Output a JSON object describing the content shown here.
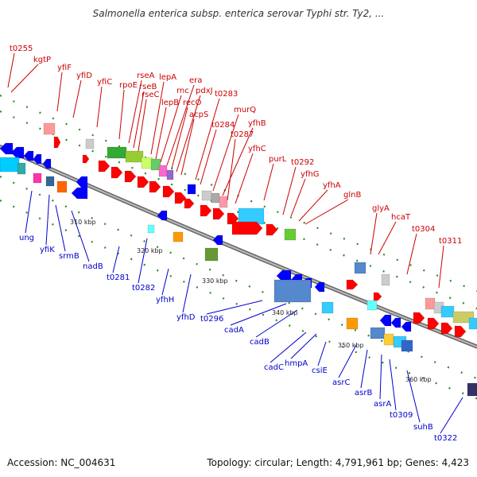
{
  "header": {
    "title": "Salmonella enterica subsp. enterica serovar Typhi str. Ty2, ..."
  },
  "footer": {
    "accession": "Accession: NC_004631",
    "info": "Topology: circular; Length: 4,791,961 bp; Genes: 4,423"
  },
  "colors": {
    "forward_label": "#cc0000",
    "reverse_label": "#0000cc",
    "forward_feature": "#ff0000",
    "reverse_feature": "#0000ff",
    "backbone": "#666666",
    "gc_marks": "#2a8a2a"
  },
  "ruler": {
    "ticks": [
      "310 kbp",
      "320 kbp",
      "330 kbp",
      "340 kbp",
      "350 kbp",
      "360 kbp"
    ]
  },
  "genes": {
    "forward": [
      "t0255",
      "kgtP",
      "yfiF",
      "yfiD",
      "yfiC",
      "rpoE",
      "rseA",
      "rseB",
      "rseC",
      "lepA",
      "lepB",
      "rnc",
      "era",
      "recO",
      "pdxJ",
      "acpS",
      "t0283",
      "t0284",
      "murQ",
      "yfhB",
      "t0287",
      "yfhC",
      "purL",
      "t0292",
      "yfhG",
      "yfhA",
      "glnB",
      "glyA",
      "hcaT",
      "t0304",
      "t0311"
    ],
    "reverse": [
      "ung",
      "yfiK",
      "srmB",
      "nadB",
      "t0281",
      "t0282",
      "yfhH",
      "yfhD",
      "t0296",
      "cadA",
      "cadB",
      "cadC",
      "hmpA",
      "csiE",
      "asrC",
      "asrB",
      "asrA",
      "t0309",
      "suhB",
      "t0322"
    ]
  }
}
